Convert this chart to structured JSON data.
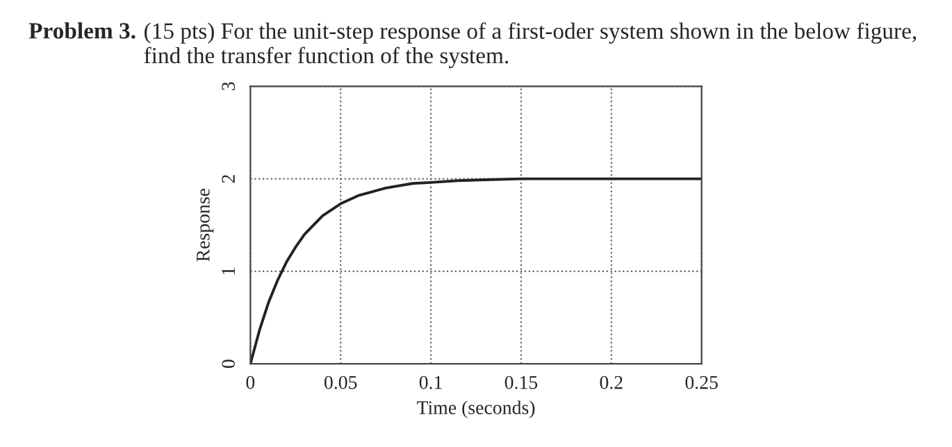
{
  "chart_data": {
    "type": "line",
    "title": "Problem 3.",
    "subtitle": "(15 pts) For the unit-step response of a first-oder system shown in the below figure, find the transfer function of the system.",
    "xlabel": "Time (seconds)",
    "ylabel": "Response",
    "series": [
      {
        "color": "#222222",
        "x": [
          0,
          0.005,
          0.01,
          0.015,
          0.02,
          0.025,
          0.03,
          0.04,
          0.05,
          0.06,
          0.075,
          0.09,
          0.1,
          0.115,
          0.13,
          0.15,
          0.2,
          0.25
        ],
        "values": [
          0,
          0.36,
          0.66,
          0.9,
          1.1,
          1.26,
          1.4,
          1.6,
          1.73,
          1.82,
          1.9,
          1.95,
          1.96,
          1.98,
          1.99,
          2,
          2,
          2
        ]
      }
    ],
    "xlim": [
      0,
      0.25
    ],
    "ylim": [
      0,
      3
    ],
    "xticks": [
      0,
      0.05,
      0.1,
      0.15,
      0.2,
      0.25
    ],
    "yticks": [
      0,
      1,
      2,
      3
    ],
    "grid": true,
    "line_style": "solid",
    "marker": "none"
  }
}
